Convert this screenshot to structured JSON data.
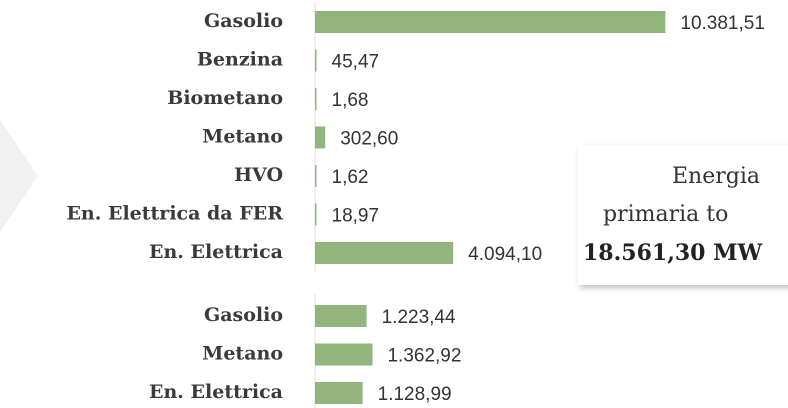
{
  "chart_data": [
    {
      "type": "bar",
      "orientation": "horizontal",
      "categories": [
        "Gasolio",
        "Benzina",
        "Biometano",
        "Metano",
        "HVO",
        "En. Elettrica da FER",
        "En. Elettrica"
      ],
      "values": [
        10381.51,
        45.47,
        1.68,
        302.6,
        1.62,
        18.97,
        4094.1
      ],
      "value_labels": [
        "10.381,51",
        "45,47",
        "1,68",
        "302,60",
        "1,62",
        "18,97",
        "4.094,10"
      ],
      "color": "#92b57e",
      "xlim": [
        0,
        12000
      ]
    },
    {
      "type": "bar",
      "orientation": "horizontal",
      "categories": [
        "Gasolio",
        "Metano",
        "En. Elettrica"
      ],
      "values": [
        1223.44,
        1362.92,
        1128.99
      ],
      "value_labels": [
        "1.223,44",
        "1.362,92",
        "1.128,99"
      ],
      "color": "#92b57e",
      "xlim": [
        0,
        9600
      ]
    }
  ],
  "annotation": {
    "lines": [
      "Energia",
      "primaria to"
    ],
    "total": "18.561,30 MW"
  }
}
